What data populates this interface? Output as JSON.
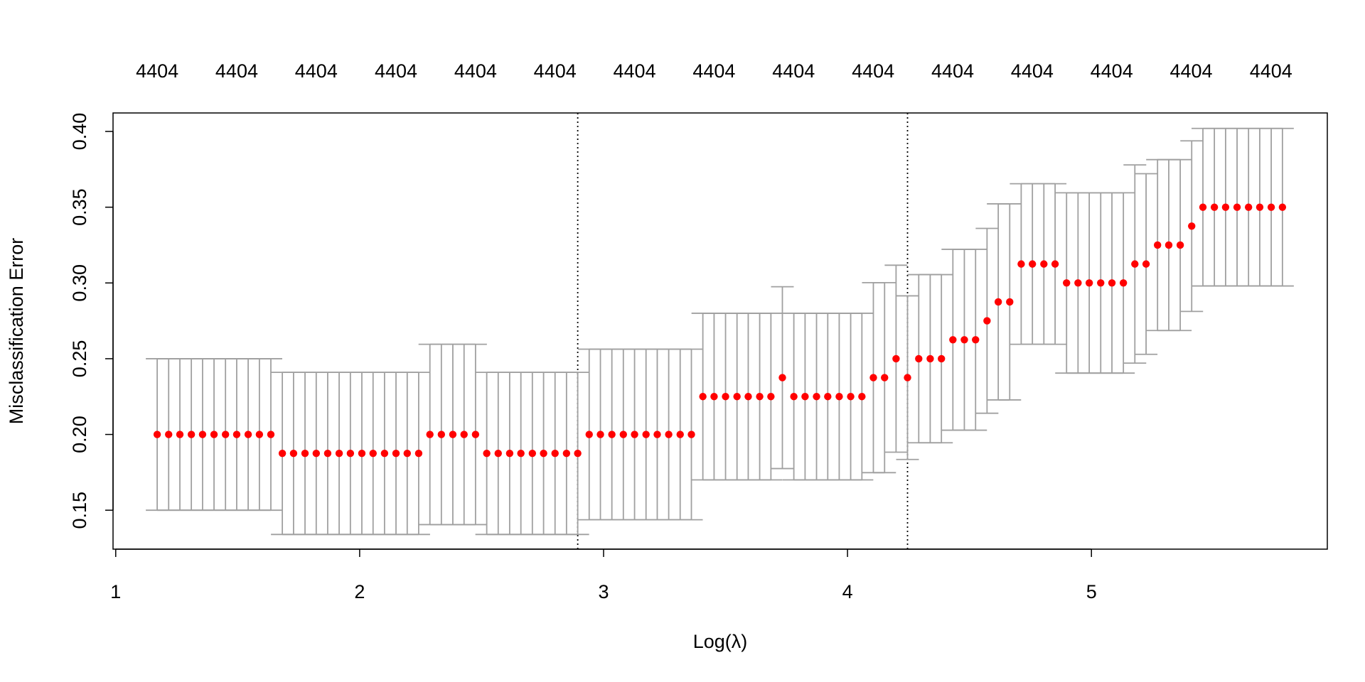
{
  "chart_data": {
    "type": "errorbar",
    "xlabel": "Log(λ)",
    "ylabel": "Misclassification Error",
    "point_color": "#ff0000",
    "bar_color": "#a0a0a0",
    "x": [
      1.17,
      1.217,
      1.263,
      1.31,
      1.356,
      1.403,
      1.45,
      1.496,
      1.543,
      1.589,
      1.636,
      1.683,
      1.729,
      1.776,
      1.822,
      1.869,
      1.916,
      1.962,
      2.009,
      2.055,
      2.102,
      2.149,
      2.195,
      2.242,
      2.288,
      2.335,
      2.382,
      2.428,
      2.475,
      2.521,
      2.568,
      2.615,
      2.661,
      2.708,
      2.754,
      2.801,
      2.848,
      2.894,
      2.941,
      2.987,
      3.034,
      3.081,
      3.127,
      3.174,
      3.22,
      3.267,
      3.314,
      3.36,
      3.407,
      3.453,
      3.5,
      3.547,
      3.593,
      3.64,
      3.686,
      3.733,
      3.78,
      3.826,
      3.873,
      3.919,
      3.966,
      4.013,
      4.059,
      4.106,
      4.152,
      4.199,
      4.246,
      4.292,
      4.339,
      4.385,
      4.432,
      4.479,
      4.525,
      4.572,
      4.618,
      4.665,
      4.712,
      4.758,
      4.805,
      4.851,
      4.898,
      4.945,
      4.991,
      5.038,
      5.084,
      5.131,
      5.178,
      5.224,
      5.271,
      5.317,
      5.364,
      5.411,
      5.457,
      5.504,
      5.55,
      5.597,
      5.644,
      5.69,
      5.737,
      5.783
    ],
    "values": [
      0.2,
      0.2,
      0.2,
      0.2,
      0.2,
      0.2,
      0.2,
      0.2,
      0.2,
      0.2,
      0.2,
      0.1875,
      0.1875,
      0.1875,
      0.1875,
      0.1875,
      0.1875,
      0.1875,
      0.1875,
      0.1875,
      0.1875,
      0.1875,
      0.1875,
      0.1875,
      0.2,
      0.2,
      0.2,
      0.2,
      0.2,
      0.1875,
      0.1875,
      0.1875,
      0.1875,
      0.1875,
      0.1875,
      0.1875,
      0.1875,
      0.1875,
      0.2,
      0.2,
      0.2,
      0.2,
      0.2,
      0.2,
      0.2,
      0.2,
      0.2,
      0.2,
      0.225,
      0.225,
      0.225,
      0.225,
      0.225,
      0.225,
      0.225,
      0.2375,
      0.225,
      0.225,
      0.225,
      0.225,
      0.225,
      0.225,
      0.225,
      0.2375,
      0.2375,
      0.25,
      0.2375,
      0.25,
      0.25,
      0.25,
      0.2625,
      0.2625,
      0.2625,
      0.275,
      0.2875,
      0.2875,
      0.3125,
      0.3125,
      0.3125,
      0.3125,
      0.3,
      0.3,
      0.3,
      0.3,
      0.3,
      0.3,
      0.3125,
      0.3125,
      0.325,
      0.325,
      0.325,
      0.3375,
      0.35,
      0.35,
      0.35,
      0.35,
      0.35,
      0.35,
      0.35,
      0.35
    ],
    "errors": [
      0.05,
      0.05,
      0.05,
      0.05,
      0.05,
      0.05,
      0.05,
      0.05,
      0.05,
      0.05,
      0.05,
      0.0535,
      0.0535,
      0.0535,
      0.0535,
      0.0535,
      0.0535,
      0.0535,
      0.0535,
      0.0535,
      0.0535,
      0.0535,
      0.0535,
      0.0535,
      0.0595,
      0.0595,
      0.0595,
      0.0595,
      0.0595,
      0.0535,
      0.0535,
      0.0535,
      0.0535,
      0.0535,
      0.0535,
      0.0535,
      0.0535,
      0.0535,
      0.0563,
      0.0563,
      0.0563,
      0.0563,
      0.0563,
      0.0563,
      0.0563,
      0.0563,
      0.0563,
      0.0563,
      0.055,
      0.055,
      0.055,
      0.055,
      0.055,
      0.055,
      0.055,
      0.06,
      0.055,
      0.055,
      0.055,
      0.055,
      0.055,
      0.055,
      0.055,
      0.0627,
      0.0627,
      0.0617,
      0.054,
      0.0555,
      0.0555,
      0.0555,
      0.0597,
      0.0597,
      0.0597,
      0.061,
      0.0647,
      0.0647,
      0.053,
      0.053,
      0.053,
      0.053,
      0.0595,
      0.0595,
      0.0595,
      0.0595,
      0.0595,
      0.0595,
      0.0654,
      0.0596,
      0.0564,
      0.0564,
      0.0564,
      0.0563,
      0.052,
      0.052,
      0.052,
      0.052,
      0.052,
      0.052,
      0.052,
      0.052
    ],
    "vlines": [
      2.894,
      4.246
    ],
    "xlim": [
      0.989,
      5.967
    ],
    "ylim": [
      0.1243,
      0.4122
    ],
    "xticks": [
      1,
      2,
      3,
      4,
      5
    ],
    "yticks": [
      0.15,
      {
        "value": 0.2,
        "label": "0.20"
      },
      0.25,
      {
        "value": 0.3,
        "label": "0.30"
      },
      0.35,
      {
        "value": 0.4,
        "label": "0.40"
      }
    ],
    "top_ticks": [
      {
        "value": 1.17,
        "label": "4404"
      },
      {
        "value": 1.496,
        "label": "4404"
      },
      {
        "value": 1.822,
        "label": "4404"
      },
      {
        "value": 2.149,
        "label": "4404"
      },
      {
        "value": 2.475,
        "label": "4404"
      },
      {
        "value": 2.801,
        "label": "4404"
      },
      {
        "value": 3.127,
        "label": "4404"
      },
      {
        "value": 3.453,
        "label": "4404"
      },
      {
        "value": 3.779,
        "label": "4404"
      },
      {
        "value": 4.105,
        "label": "4404"
      },
      {
        "value": 4.431,
        "label": "4404"
      },
      {
        "value": 4.757,
        "label": "4404"
      },
      {
        "value": 5.083,
        "label": "4404"
      },
      {
        "value": 5.409,
        "label": "4404"
      },
      {
        "value": 5.736,
        "label": "4404"
      }
    ]
  }
}
